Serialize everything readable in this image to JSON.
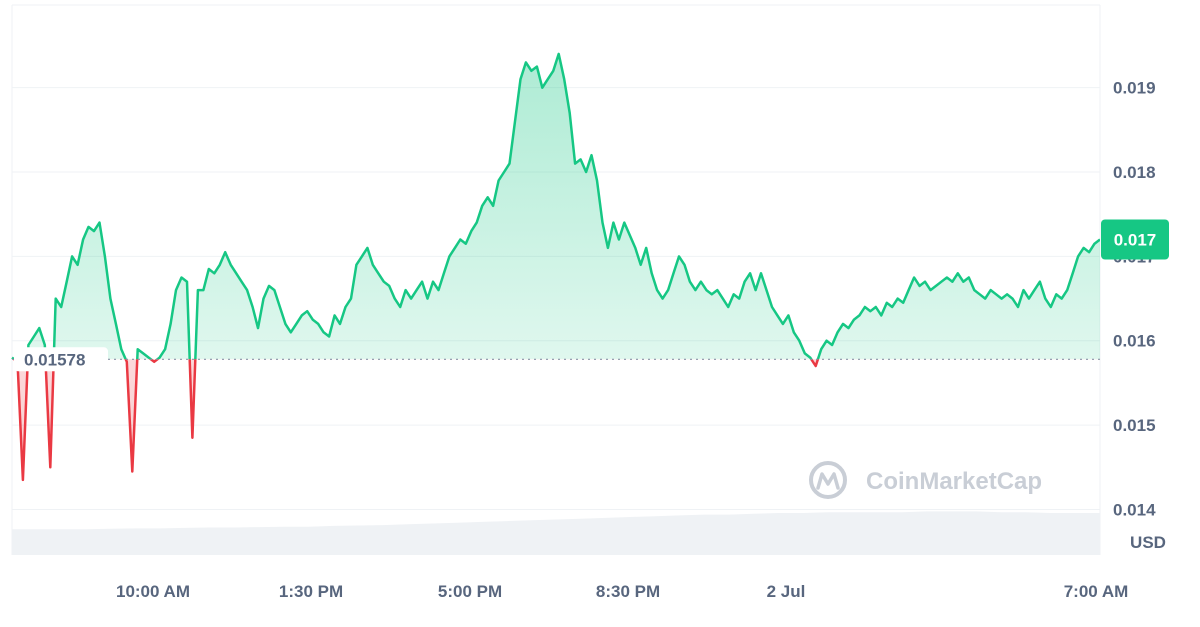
{
  "chart_data": {
    "type": "area",
    "currency_label": "USD",
    "watermark": "CoinMarketCap",
    "y_ticks": [
      "0.014",
      "0.015",
      "0.016",
      "0.017",
      "0.018",
      "0.019"
    ],
    "y_tick_values": [
      0.014,
      0.015,
      0.016,
      0.017,
      0.018,
      0.019
    ],
    "ylim": [
      0.01346,
      0.01998
    ],
    "x_ticks": [
      "10:00 AM",
      "1:30 PM",
      "5:00 PM",
      "8:30 PM",
      "2 Jul",
      "7:00 AM"
    ],
    "reference_value": 0.01578,
    "reference_label": "0.01578",
    "current_value": 0.0172,
    "current_label": "0.017",
    "grid": true,
    "colors": {
      "up": "#16c784",
      "down": "#ea3943",
      "volume": "#eff2f5",
      "grid": "#eff2f5"
    },
    "series": [
      {
        "values": [
          0.0158,
          0.01575,
          0.01435,
          0.01595,
          0.01605,
          0.01615,
          0.01595,
          0.0145,
          0.0165,
          0.0164,
          0.0167,
          0.017,
          0.0169,
          0.0172,
          0.01735,
          0.0173,
          0.0174,
          0.017,
          0.0165,
          0.0162,
          0.0159,
          0.01575,
          0.01445,
          0.0159,
          0.01585,
          0.0158,
          0.01575,
          0.0158,
          0.0159,
          0.0162,
          0.0166,
          0.01675,
          0.0167,
          0.01485,
          0.0166,
          0.0166,
          0.01685,
          0.0168,
          0.0169,
          0.01705,
          0.0169,
          0.0168,
          0.0167,
          0.0166,
          0.0164,
          0.01615,
          0.0165,
          0.01665,
          0.0166,
          0.0164,
          0.0162,
          0.0161,
          0.0162,
          0.0163,
          0.01635,
          0.01625,
          0.0162,
          0.0161,
          0.01605,
          0.0163,
          0.0162,
          0.0164,
          0.0165,
          0.0169,
          0.017,
          0.0171,
          0.0169,
          0.0168,
          0.0167,
          0.01665,
          0.0165,
          0.0164,
          0.0166,
          0.0165,
          0.0166,
          0.0167,
          0.0165,
          0.0167,
          0.0166,
          0.0168,
          0.017,
          0.0171,
          0.0172,
          0.01715,
          0.0173,
          0.0174,
          0.0176,
          0.0177,
          0.0176,
          0.0179,
          0.018,
          0.0181,
          0.0186,
          0.0191,
          0.0193,
          0.0192,
          0.01925,
          0.019,
          0.0191,
          0.0192,
          0.0194,
          0.0191,
          0.0187,
          0.0181,
          0.01815,
          0.018,
          0.0182,
          0.0179,
          0.0174,
          0.0171,
          0.0174,
          0.0172,
          0.0174,
          0.01725,
          0.0171,
          0.0169,
          0.0171,
          0.0168,
          0.0166,
          0.0165,
          0.0166,
          0.0168,
          0.017,
          0.0169,
          0.0167,
          0.0166,
          0.0167,
          0.0166,
          0.01655,
          0.0166,
          0.0165,
          0.0164,
          0.01655,
          0.0165,
          0.0167,
          0.0168,
          0.0166,
          0.0168,
          0.0166,
          0.0164,
          0.0163,
          0.0162,
          0.0163,
          0.0161,
          0.016,
          0.01585,
          0.0158,
          0.0157,
          0.0159,
          0.016,
          0.01595,
          0.0161,
          0.0162,
          0.01615,
          0.01625,
          0.0163,
          0.0164,
          0.01635,
          0.0164,
          0.0163,
          0.01645,
          0.0164,
          0.0165,
          0.01645,
          0.0166,
          0.01675,
          0.01665,
          0.0167,
          0.0166,
          0.01665,
          0.0167,
          0.01675,
          0.0167,
          0.0168,
          0.0167,
          0.01675,
          0.0166,
          0.01655,
          0.0165,
          0.0166,
          0.01655,
          0.0165,
          0.01655,
          0.0165,
          0.0164,
          0.0166,
          0.0165,
          0.0166,
          0.0167,
          0.0165,
          0.0164,
          0.01655,
          0.0165,
          0.0166,
          0.0168,
          0.017,
          0.0171,
          0.01705,
          0.01715,
          0.0172
        ]
      }
    ],
    "volume_series": [
      0.32,
      0.32,
      0.32,
      0.32,
      0.325,
      0.33,
      0.33,
      0.335,
      0.34,
      0.34,
      0.345,
      0.35,
      0.35,
      0.36,
      0.365,
      0.37,
      0.38,
      0.39,
      0.4,
      0.41,
      0.42,
      0.43,
      0.44,
      0.45,
      0.46,
      0.47,
      0.48,
      0.49,
      0.5,
      0.5,
      0.51,
      0.52,
      0.52,
      0.53,
      0.53,
      0.53,
      0.53,
      0.54,
      0.54,
      0.54,
      0.53,
      0.53,
      0.52,
      0.52,
      0.52
    ]
  }
}
